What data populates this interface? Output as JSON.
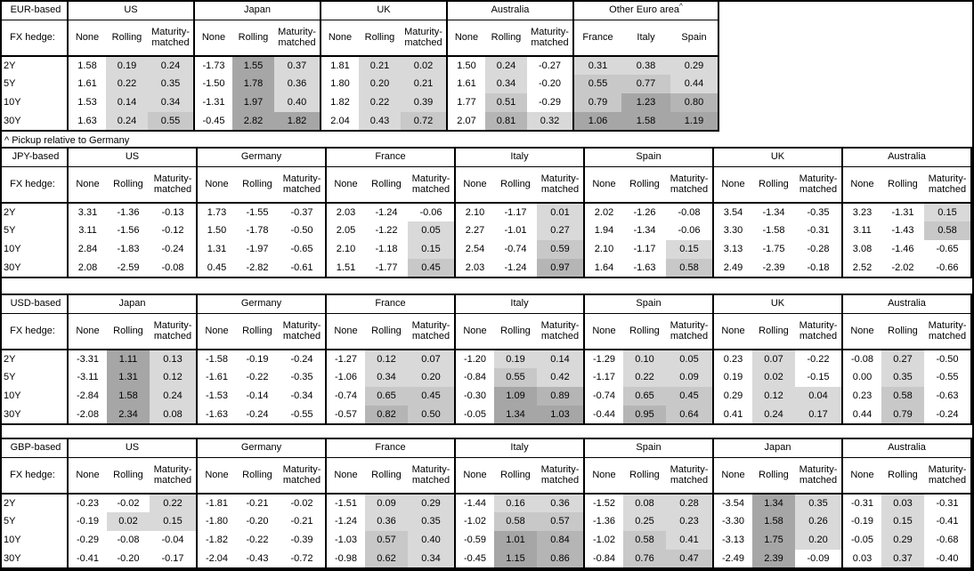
{
  "footnote": "^ Pickup relative to Germany",
  "hedge_label": "FX hedge:",
  "hedge_columns": [
    "None",
    "Rolling",
    "Maturity-matched"
  ],
  "tenors": [
    "2Y",
    "5Y",
    "10Y",
    "30Y"
  ],
  "heatmap": {
    "note": "positive values shaded, darker = larger; None columns unshaded",
    "bins": [
      {
        "upto": 0.45,
        "color": "#d9d9d9"
      },
      {
        "upto": 0.8,
        "color": "#c8c8c8"
      },
      {
        "upto": 1.0,
        "color": "#b5b5b5"
      },
      {
        "upto": 999,
        "color": "#a6a6a6"
      }
    ]
  },
  "tables": [
    {
      "base": "EUR-based",
      "groups": [
        {
          "name": "US",
          "shaded_cols": [
            1,
            2
          ],
          "rows": [
            [
              "1.58",
              "0.19",
              "0.24"
            ],
            [
              "1.61",
              "0.22",
              "0.35"
            ],
            [
              "1.53",
              "0.14",
              "0.34"
            ],
            [
              "1.63",
              "0.24",
              "0.55"
            ]
          ]
        },
        {
          "name": "Japan",
          "shaded_cols": [
            1,
            2
          ],
          "rows": [
            [
              "-1.73",
              "1.55",
              "0.37"
            ],
            [
              "-1.50",
              "1.78",
              "0.36"
            ],
            [
              "-1.31",
              "1.97",
              "0.40"
            ],
            [
              "-0.45",
              "2.82",
              "1.82"
            ]
          ]
        },
        {
          "name": "UK",
          "shaded_cols": [
            1,
            2
          ],
          "rows": [
            [
              "1.81",
              "0.21",
              "0.02"
            ],
            [
              "1.80",
              "0.20",
              "0.21"
            ],
            [
              "1.82",
              "0.22",
              "0.39"
            ],
            [
              "2.04",
              "0.43",
              "0.72"
            ]
          ]
        },
        {
          "name": "Australia",
          "shaded_cols": [
            1,
            2
          ],
          "rows": [
            [
              "1.50",
              "0.24",
              "-0.27"
            ],
            [
              "1.61",
              "0.34",
              "-0.20"
            ],
            [
              "1.77",
              "0.51",
              "-0.29"
            ],
            [
              "2.07",
              "0.81",
              "0.32"
            ]
          ]
        },
        {
          "name": "Other Euro area",
          "footnote_mark": "^",
          "cols": [
            "France",
            "Italy",
            "Spain"
          ],
          "shaded_cols": [
            0,
            1,
            2
          ],
          "rows": [
            [
              "0.31",
              "0.38",
              "0.29"
            ],
            [
              "0.55",
              "0.77",
              "0.44"
            ],
            [
              "0.79",
              "1.23",
              "0.80"
            ],
            [
              "1.06",
              "1.58",
              "1.19"
            ]
          ]
        }
      ]
    },
    {
      "base": "JPY-based",
      "groups": [
        {
          "name": "US",
          "shaded_cols": [
            1,
            2
          ],
          "rows": [
            [
              "3.31",
              "-1.36",
              "-0.13"
            ],
            [
              "3.11",
              "-1.56",
              "-0.12"
            ],
            [
              "2.84",
              "-1.83",
              "-0.24"
            ],
            [
              "2.08",
              "-2.59",
              "-0.08"
            ]
          ]
        },
        {
          "name": "Germany",
          "shaded_cols": [
            1,
            2
          ],
          "rows": [
            [
              "1.73",
              "-1.55",
              "-0.37"
            ],
            [
              "1.50",
              "-1.78",
              "-0.50"
            ],
            [
              "1.31",
              "-1.97",
              "-0.65"
            ],
            [
              "0.45",
              "-2.82",
              "-0.61"
            ]
          ]
        },
        {
          "name": "France",
          "shaded_cols": [
            1,
            2
          ],
          "rows": [
            [
              "2.03",
              "-1.24",
              "-0.06"
            ],
            [
              "2.05",
              "-1.22",
              "0.05"
            ],
            [
              "2.10",
              "-1.18",
              "0.15"
            ],
            [
              "1.51",
              "-1.77",
              "0.45"
            ]
          ]
        },
        {
          "name": "Italy",
          "shaded_cols": [
            1,
            2
          ],
          "rows": [
            [
              "2.10",
              "-1.17",
              "0.01"
            ],
            [
              "2.27",
              "-1.01",
              "0.27"
            ],
            [
              "2.54",
              "-0.74",
              "0.59"
            ],
            [
              "2.03",
              "-1.24",
              "0.97"
            ]
          ]
        },
        {
          "name": "Spain",
          "shaded_cols": [
            1,
            2
          ],
          "rows": [
            [
              "2.02",
              "-1.26",
              "-0.08"
            ],
            [
              "1.94",
              "-1.34",
              "-0.06"
            ],
            [
              "2.10",
              "-1.17",
              "0.15"
            ],
            [
              "1.64",
              "-1.63",
              "0.58"
            ]
          ]
        },
        {
          "name": "UK",
          "shaded_cols": [
            1,
            2
          ],
          "rows": [
            [
              "3.54",
              "-1.34",
              "-0.35"
            ],
            [
              "3.30",
              "-1.58",
              "-0.31"
            ],
            [
              "3.13",
              "-1.75",
              "-0.28"
            ],
            [
              "2.49",
              "-2.39",
              "-0.18"
            ]
          ]
        },
        {
          "name": "Australia",
          "shaded_cols": [
            1,
            2
          ],
          "rows": [
            [
              "3.23",
              "-1.31",
              "0.15"
            ],
            [
              "3.11",
              "-1.43",
              "0.58"
            ],
            [
              "3.08",
              "-1.46",
              "-0.65"
            ],
            [
              "2.52",
              "-2.02",
              "-0.66"
            ]
          ]
        }
      ]
    },
    {
      "base": "USD-based",
      "groups": [
        {
          "name": "Japan",
          "shaded_cols": [
            1,
            2
          ],
          "rows": [
            [
              "-3.31",
              "1.11",
              "0.13"
            ],
            [
              "-3.11",
              "1.31",
              "0.12"
            ],
            [
              "-2.84",
              "1.58",
              "0.24"
            ],
            [
              "-2.08",
              "2.34",
              "0.08"
            ]
          ]
        },
        {
          "name": "Germany",
          "shaded_cols": [
            1,
            2
          ],
          "rows": [
            [
              "-1.58",
              "-0.19",
              "-0.24"
            ],
            [
              "-1.61",
              "-0.22",
              "-0.35"
            ],
            [
              "-1.53",
              "-0.14",
              "-0.34"
            ],
            [
              "-1.63",
              "-0.24",
              "-0.55"
            ]
          ]
        },
        {
          "name": "France",
          "shaded_cols": [
            1,
            2
          ],
          "rows": [
            [
              "-1.27",
              "0.12",
              "0.07"
            ],
            [
              "-1.06",
              "0.34",
              "0.20"
            ],
            [
              "-0.74",
              "0.65",
              "0.45"
            ],
            [
              "-0.57",
              "0.82",
              "0.50"
            ]
          ]
        },
        {
          "name": "Italy",
          "shaded_cols": [
            1,
            2
          ],
          "rows": [
            [
              "-1.20",
              "0.19",
              "0.14"
            ],
            [
              "-0.84",
              "0.55",
              "0.42"
            ],
            [
              "-0.30",
              "1.09",
              "0.89"
            ],
            [
              "-0.05",
              "1.34",
              "1.03"
            ]
          ]
        },
        {
          "name": "Spain",
          "shaded_cols": [
            1,
            2
          ],
          "rows": [
            [
              "-1.29",
              "0.10",
              "0.05"
            ],
            [
              "-1.17",
              "0.22",
              "0.09"
            ],
            [
              "-0.74",
              "0.65",
              "0.45"
            ],
            [
              "-0.44",
              "0.95",
              "0.64"
            ]
          ]
        },
        {
          "name": "UK",
          "shaded_cols": [
            1,
            2
          ],
          "rows": [
            [
              "0.23",
              "0.07",
              "-0.22"
            ],
            [
              "0.19",
              "0.02",
              "-0.15"
            ],
            [
              "0.29",
              "0.12",
              "0.04"
            ],
            [
              "0.41",
              "0.24",
              "0.17"
            ]
          ]
        },
        {
          "name": "Australia",
          "shaded_cols": [
            1,
            2
          ],
          "rows": [
            [
              "-0.08",
              "0.27",
              "-0.50"
            ],
            [
              "0.00",
              "0.35",
              "-0.55"
            ],
            [
              "0.23",
              "0.58",
              "-0.63"
            ],
            [
              "0.44",
              "0.79",
              "-0.24"
            ]
          ]
        }
      ]
    },
    {
      "base": "GBP-based",
      "groups": [
        {
          "name": "US",
          "shaded_cols": [
            1,
            2
          ],
          "rows": [
            [
              "-0.23",
              "-0.02",
              "0.22"
            ],
            [
              "-0.19",
              "0.02",
              "0.15"
            ],
            [
              "-0.29",
              "-0.08",
              "-0.04"
            ],
            [
              "-0.41",
              "-0.20",
              "-0.17"
            ]
          ]
        },
        {
          "name": "Germany",
          "shaded_cols": [
            1,
            2
          ],
          "rows": [
            [
              "-1.81",
              "-0.21",
              "-0.02"
            ],
            [
              "-1.80",
              "-0.20",
              "-0.21"
            ],
            [
              "-1.82",
              "-0.22",
              "-0.39"
            ],
            [
              "-2.04",
              "-0.43",
              "-0.72"
            ]
          ]
        },
        {
          "name": "France",
          "shaded_cols": [
            1,
            2
          ],
          "rows": [
            [
              "-1.51",
              "0.09",
              "0.29"
            ],
            [
              "-1.24",
              "0.36",
              "0.35"
            ],
            [
              "-1.03",
              "0.57",
              "0.40"
            ],
            [
              "-0.98",
              "0.62",
              "0.34"
            ]
          ]
        },
        {
          "name": "Italy",
          "shaded_cols": [
            1,
            2
          ],
          "rows": [
            [
              "-1.44",
              "0.16",
              "0.36"
            ],
            [
              "-1.02",
              "0.58",
              "0.57"
            ],
            [
              "-0.59",
              "1.01",
              "0.84"
            ],
            [
              "-0.45",
              "1.15",
              "0.86"
            ]
          ]
        },
        {
          "name": "Spain",
          "shaded_cols": [
            1,
            2
          ],
          "rows": [
            [
              "-1.52",
              "0.08",
              "0.28"
            ],
            [
              "-1.36",
              "0.25",
              "0.23"
            ],
            [
              "-1.02",
              "0.58",
              "0.41"
            ],
            [
              "-0.84",
              "0.76",
              "0.47"
            ]
          ]
        },
        {
          "name": "Japan",
          "shaded_cols": [
            1,
            2
          ],
          "rows": [
            [
              "-3.54",
              "1.34",
              "0.35"
            ],
            [
              "-3.30",
              "1.58",
              "0.26"
            ],
            [
              "-3.13",
              "1.75",
              "0.20"
            ],
            [
              "-2.49",
              "2.39",
              "-0.09"
            ]
          ]
        },
        {
          "name": "Australia",
          "shaded_cols": [
            1,
            2
          ],
          "rows": [
            [
              "-0.31",
              "0.03",
              "-0.31"
            ],
            [
              "-0.19",
              "0.15",
              "-0.41"
            ],
            [
              "-0.05",
              "0.29",
              "-0.68"
            ],
            [
              "0.03",
              "0.37",
              "-0.40"
            ]
          ]
        }
      ]
    }
  ]
}
